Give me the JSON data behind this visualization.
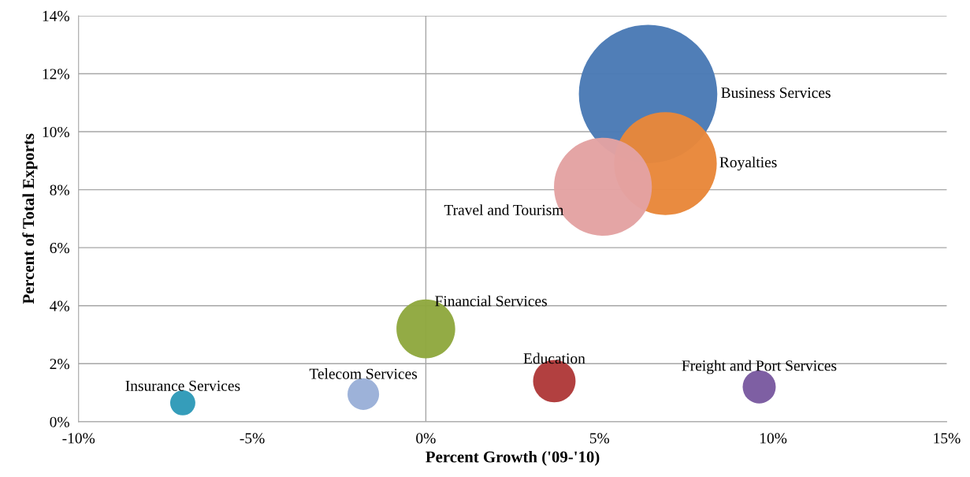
{
  "chart_data": {
    "type": "bubble",
    "xlabel": "Percent Growth ('09-'10)",
    "ylabel": "Percent of Total Exports",
    "xlim": [
      -10,
      15
    ],
    "xticks": [
      {
        "value": -10,
        "label": "-10%"
      },
      {
        "value": -5,
        "label": "-5%"
      },
      {
        "value": 0,
        "label": "0%"
      },
      {
        "value": 5,
        "label": "5%"
      },
      {
        "value": 10,
        "label": "10%"
      },
      {
        "value": 15,
        "label": "15%"
      }
    ],
    "ylim": [
      0,
      14
    ],
    "yticks": [
      {
        "value": 0,
        "label": "0%"
      },
      {
        "value": 2,
        "label": "2%"
      },
      {
        "value": 4,
        "label": "4%"
      },
      {
        "value": 6,
        "label": "6%"
      },
      {
        "value": 8,
        "label": "8%"
      },
      {
        "value": 10,
        "label": "10%"
      },
      {
        "value": 12,
        "label": "12%"
      },
      {
        "value": 14,
        "label": "14%"
      }
    ],
    "grid": "y",
    "ref_lines": [
      {
        "axis": "x",
        "value": 0,
        "color": "#a6a6a6"
      }
    ],
    "series": [
      {
        "name": "Business Services",
        "color": "#4a7ab5",
        "x": [
          6.4
        ],
        "values": [
          11.3
        ],
        "sizes": [
          1
        ]
      },
      {
        "name": "Royalties",
        "color": "#e8873a",
        "x": [
          6.9
        ],
        "values": [
          8.9
        ],
        "sizes": [
          0.55
        ]
      },
      {
        "name": "Travel and Tourism",
        "color": "#e3a2a2",
        "x": [
          5.1
        ],
        "values": [
          8.1
        ],
        "sizes": [
          0.5
        ]
      },
      {
        "name": "Financial Services",
        "color": "#8fa83f",
        "x": [
          0.0
        ],
        "values": [
          3.2
        ],
        "sizes": [
          0.18
        ]
      },
      {
        "name": "Education",
        "color": "#b03a3a",
        "x": [
          3.7
        ],
        "values": [
          1.4
        ],
        "sizes": [
          0.094
        ]
      },
      {
        "name": "Freight and Port Services",
        "color": "#7a5aa0",
        "x": [
          9.6
        ],
        "values": [
          1.2
        ],
        "sizes": [
          0.057
        ]
      },
      {
        "name": "Telecom Services",
        "color": "#9aafd8",
        "x": [
          -1.8
        ],
        "values": [
          0.95
        ],
        "sizes": [
          0.052
        ]
      },
      {
        "name": "Insurance Services",
        "color": "#2e9ab8",
        "x": [
          -7.0
        ],
        "values": [
          0.65
        ],
        "sizes": [
          0.033
        ]
      }
    ]
  }
}
